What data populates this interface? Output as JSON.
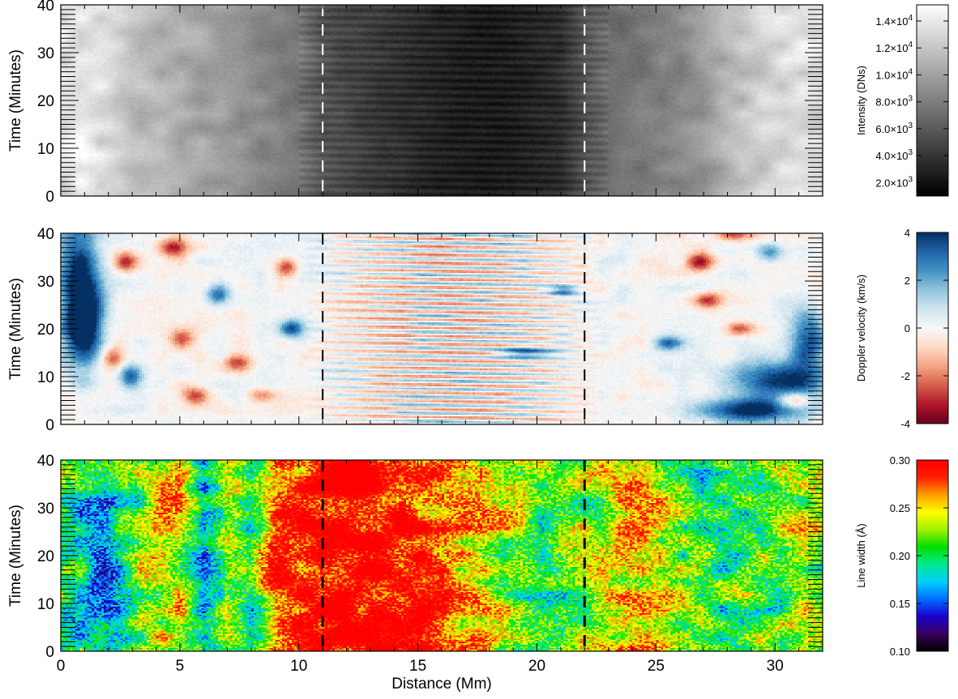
{
  "chart_data": [
    {
      "type": "heatmap",
      "panel": "intensity",
      "title": "",
      "xlabel": "",
      "ylabel": "Time (Minutes)",
      "xlim": [
        0,
        32
      ],
      "ylim": [
        0,
        40
      ],
      "x_ticks": [
        "0",
        "5",
        "10",
        "15",
        "20",
        "25",
        "30"
      ],
      "x_ticks_shown": false,
      "y_ticks": [
        "0",
        "10",
        "20",
        "30",
        "40"
      ],
      "dashed_lines_x": [
        11,
        22
      ],
      "dashed_line_color": "#ffffff",
      "colormap": "grayscale",
      "colormap_colors": [
        "#000000",
        "#ffffff"
      ],
      "colorbar": {
        "label": "Intensity (DNs)",
        "range": [
          1000,
          15200
        ],
        "ticks": [
          {
            "value": 2000,
            "mantissa": "2.0",
            "exponent": "3"
          },
          {
            "value": 4000,
            "mantissa": "4.0",
            "exponent": "3"
          },
          {
            "value": 6000,
            "mantissa": "6.0",
            "exponent": "3"
          },
          {
            "value": 8000,
            "mantissa": "8.0",
            "exponent": "3"
          },
          {
            "value": 10000,
            "mantissa": "1.0",
            "exponent": "4"
          },
          {
            "value": 12000,
            "mantissa": "1.2",
            "exponent": "4"
          },
          {
            "value": 14000,
            "mantissa": "1.4",
            "exponent": "4"
          }
        ]
      },
      "profile": {
        "x": [
          0,
          1,
          2,
          3,
          4,
          5,
          6,
          7,
          8,
          9,
          10,
          11,
          12,
          13,
          14,
          15,
          16,
          17,
          18,
          19,
          20,
          21,
          22,
          23,
          24,
          25,
          26,
          27,
          28,
          29,
          30,
          31,
          32
        ],
        "value": [
          13500,
          13800,
          13000,
          11500,
          11000,
          10500,
          10000,
          9500,
          9000,
          8500,
          7500,
          5500,
          4800,
          4300,
          3800,
          3300,
          2800,
          2500,
          2400,
          2600,
          3000,
          3500,
          5500,
          7000,
          7500,
          8000,
          8500,
          9500,
          11000,
          12000,
          13000,
          13500,
          13000
        ]
      },
      "time_modulation_period_minutes": 1.6
    },
    {
      "type": "heatmap",
      "panel": "doppler",
      "title": "",
      "xlabel": "",
      "ylabel": "Time (Minutes)",
      "xlim": [
        0,
        32
      ],
      "ylim": [
        0,
        40
      ],
      "x_ticks": [
        "0",
        "5",
        "10",
        "15",
        "20",
        "25",
        "30"
      ],
      "x_ticks_shown": false,
      "y_ticks": [
        "0",
        "10",
        "20",
        "30",
        "40"
      ],
      "dashed_lines_x": [
        11,
        22
      ],
      "dashed_line_color": "#000000",
      "colormap": "red-white-blue",
      "colormap_colors": [
        "#67001f",
        "#b2182b",
        "#d6604d",
        "#f4a582",
        "#fddbc7",
        "#f7f7f7",
        "#d1e5f0",
        "#92c5de",
        "#4393c3",
        "#2166ac",
        "#053061"
      ],
      "colorbar": {
        "label": "Doppler velocity (km/s)",
        "range": [
          -4,
          4
        ],
        "ticks": [
          {
            "value": -4,
            "label": "-4"
          },
          {
            "value": -2,
            "label": "-2"
          },
          {
            "value": 0,
            "label": "0"
          },
          {
            "value": 2,
            "label": "2"
          },
          {
            "value": 4,
            "label": "4"
          }
        ]
      },
      "patches": [
        {
          "x": 0.8,
          "t": 30,
          "v": 4.2,
          "rx": 0.9,
          "rt": 14
        },
        {
          "x": 1.0,
          "t": 20,
          "v": 4.0,
          "rx": 0.7,
          "rt": 8
        },
        {
          "x": 2.7,
          "t": 34,
          "v": -3.4,
          "rx": 0.5,
          "rt": 2.2
        },
        {
          "x": 2.2,
          "t": 14,
          "v": -2.8,
          "rx": 0.5,
          "rt": 2
        },
        {
          "x": 2.9,
          "t": 10,
          "v": 3.5,
          "rx": 0.5,
          "rt": 2.5
        },
        {
          "x": 4.7,
          "t": 37,
          "v": -3.0,
          "rx": 0.6,
          "rt": 2
        },
        {
          "x": 5.6,
          "t": 6,
          "v": -2.6,
          "rx": 0.6,
          "rt": 2
        },
        {
          "x": 5.1,
          "t": 18,
          "v": -2.4,
          "rx": 0.5,
          "rt": 2
        },
        {
          "x": 6.6,
          "t": 27,
          "v": 2.8,
          "rx": 0.5,
          "rt": 2
        },
        {
          "x": 7.4,
          "t": 13,
          "v": -2.6,
          "rx": 0.6,
          "rt": 1.8
        },
        {
          "x": 9.5,
          "t": 33,
          "v": -2.8,
          "rx": 0.5,
          "rt": 2
        },
        {
          "x": 9.7,
          "t": 20,
          "v": 3.2,
          "rx": 0.5,
          "rt": 1.8
        },
        {
          "x": 8.4,
          "t": 6,
          "v": -2.2,
          "rx": 0.6,
          "rt": 1.5
        },
        {
          "x": 19.5,
          "t": 15,
          "v": 3.0,
          "rx": 1.2,
          "rt": 1
        },
        {
          "x": 21.1,
          "t": 28,
          "v": 3.2,
          "rx": 0.6,
          "rt": 1.2
        },
        {
          "x": 25.5,
          "t": 17,
          "v": 3.0,
          "rx": 0.6,
          "rt": 1.5
        },
        {
          "x": 26.8,
          "t": 34,
          "v": -3.2,
          "rx": 0.6,
          "rt": 1.8
        },
        {
          "x": 27.2,
          "t": 26,
          "v": -2.6,
          "rx": 0.6,
          "rt": 1.6
        },
        {
          "x": 28.5,
          "t": 20,
          "v": -2.4,
          "rx": 0.6,
          "rt": 1.5
        },
        {
          "x": 28.3,
          "t": 40,
          "v": -3.2,
          "rx": 0.8,
          "rt": 1.6
        },
        {
          "x": 29.8,
          "t": 36,
          "v": 2.6,
          "rx": 0.6,
          "rt": 2
        },
        {
          "x": 30.3,
          "t": 9,
          "v": 4.0,
          "rx": 2.0,
          "rt": 4
        },
        {
          "x": 29.0,
          "t": 3,
          "v": 4.0,
          "rx": 2.3,
          "rt": 2.6
        },
        {
          "x": 31.4,
          "t": 18,
          "v": 3.8,
          "rx": 0.8,
          "rt": 6
        },
        {
          "x": 30.8,
          "t": 5,
          "v": -2.8,
          "rx": 0.6,
          "rt": 1.5
        }
      ],
      "oscillation": {
        "x_range": [
          10,
          23
        ],
        "period_minutes": 1.7,
        "amplitude": 1.8
      }
    },
    {
      "type": "heatmap",
      "panel": "linewidth",
      "title": "",
      "xlabel": "Distance (Mm)",
      "ylabel": "Time (Minutes)",
      "xlim": [
        0,
        32
      ],
      "ylim": [
        0,
        40
      ],
      "x_ticks": [
        "0",
        "5",
        "10",
        "15",
        "20",
        "25",
        "30"
      ],
      "x_ticks_shown": true,
      "y_ticks": [
        "0",
        "10",
        "20",
        "30",
        "40"
      ],
      "dashed_lines_x": [
        11,
        22
      ],
      "dashed_line_color": "#000000",
      "colormap": "rainbow",
      "colormap_colors": [
        "#000000",
        "#3a0060",
        "#1a00d0",
        "#0070ff",
        "#00d0ff",
        "#00e890",
        "#00e000",
        "#a0f000",
        "#ffff00",
        "#ffa000",
        "#ff2000",
        "#ff0000"
      ],
      "colorbar": {
        "label": "Line width (Å)",
        "range": [
          0.1,
          0.3
        ],
        "ticks": [
          {
            "value": 0.1,
            "label": "0.10"
          },
          {
            "value": 0.15,
            "label": "0.15"
          },
          {
            "value": 0.2,
            "label": "0.20"
          },
          {
            "value": 0.25,
            "label": "0.25"
          },
          {
            "value": 0.3,
            "label": "0.30"
          }
        ]
      },
      "profile": {
        "x": [
          0,
          1,
          2,
          3,
          4,
          5,
          6,
          7,
          8,
          9,
          10,
          11,
          12,
          13,
          14,
          15,
          16,
          17,
          18,
          19,
          20,
          21,
          22,
          23,
          24,
          25,
          26,
          27,
          28,
          29,
          30,
          31,
          32
        ],
        "value": [
          0.21,
          0.18,
          0.17,
          0.2,
          0.24,
          0.25,
          0.17,
          0.24,
          0.2,
          0.27,
          0.29,
          0.3,
          0.31,
          0.31,
          0.3,
          0.29,
          0.27,
          0.25,
          0.24,
          0.23,
          0.22,
          0.21,
          0.22,
          0.24,
          0.25,
          0.24,
          0.22,
          0.2,
          0.2,
          0.21,
          0.22,
          0.23,
          0.22
        ]
      }
    }
  ]
}
